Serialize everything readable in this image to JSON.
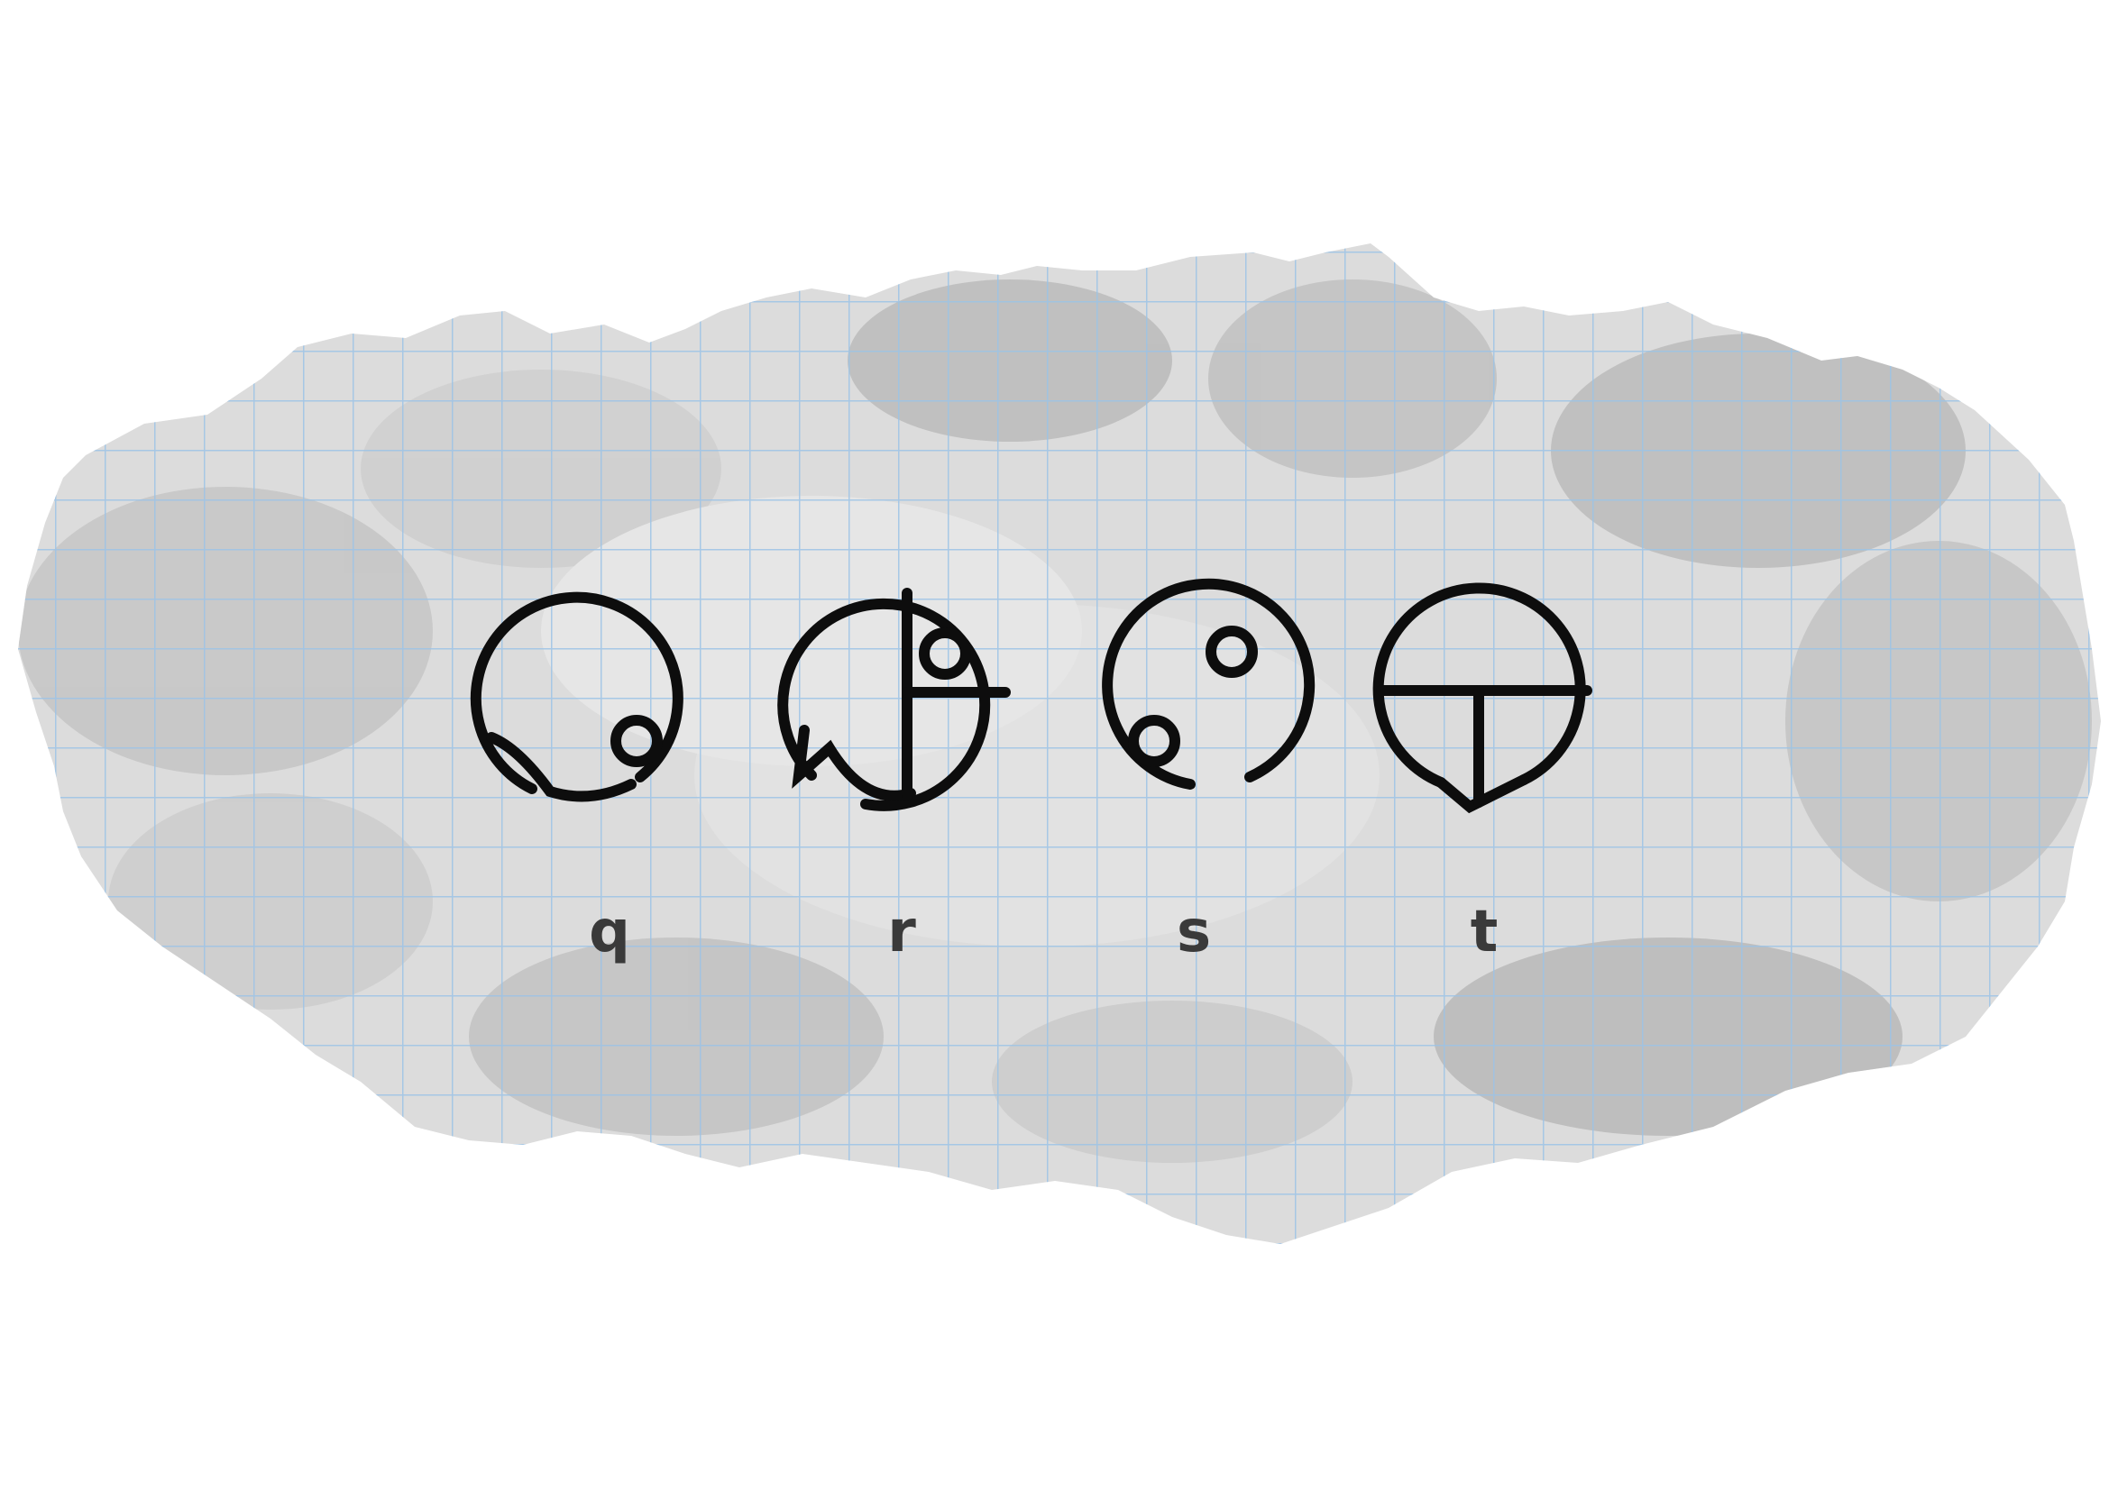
{
  "glyphs": [
    {
      "id": "q",
      "label": "q"
    },
    {
      "id": "r",
      "label": "r"
    },
    {
      "id": "s",
      "label": "s"
    },
    {
      "id": "t",
      "label": "t"
    }
  ],
  "colors": {
    "background": "#ffffff",
    "paper": "#d9d9d9",
    "grid_line": "#9cc3e6",
    "ink": "#0d0d0d",
    "label": "#3a3a3a"
  }
}
